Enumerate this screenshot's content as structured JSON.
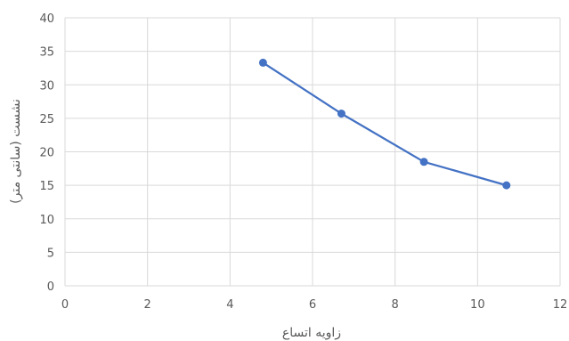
{
  "chart_data": {
    "type": "scatter",
    "title": "",
    "xlabel": "زاویه اتساع",
    "ylabel": "نشست (سانتی متر)",
    "xlim": [
      0,
      12
    ],
    "ylim": [
      0,
      40
    ],
    "xticks": [
      "0",
      "2",
      "4",
      "6",
      "8",
      "10",
      "12"
    ],
    "yticks": [
      "0",
      "5",
      "10",
      "15",
      "20",
      "25",
      "30",
      "35",
      "40"
    ],
    "grid": true,
    "series": [
      {
        "color": "#4472C4",
        "x": [
          4.8,
          6.7,
          8.7,
          10.7
        ],
        "y": [
          33.3,
          25.7,
          18.5,
          15.0
        ]
      }
    ]
  }
}
